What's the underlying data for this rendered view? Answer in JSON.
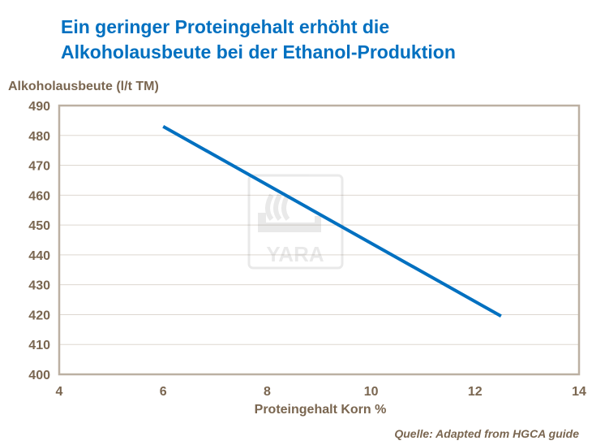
{
  "title_lines": [
    "Ein geringer Proteingehalt erhöht die",
    "Alkoholausbeute bei der Ethanol-Produktion"
  ],
  "watermark": "YARA",
  "source": "Quelle:  Adapted from HGCA guide",
  "chart_data": {
    "type": "line",
    "title": "Ein geringer Proteingehalt erhöht die Alkoholausbeute bei der Ethanol-Produktion",
    "xlabel": "Proteingehalt Korn %",
    "ylabel": "Alkoholausbeute (l/t TM)",
    "xlim": [
      4,
      14
    ],
    "ylim": [
      400,
      490
    ],
    "xticks": [
      4,
      6,
      8,
      10,
      12,
      14
    ],
    "yticks": [
      400,
      410,
      420,
      430,
      440,
      450,
      460,
      470,
      480,
      490
    ],
    "grid": "horizontal",
    "series": [
      {
        "x": [
          6,
          12.5
        ],
        "y": [
          483,
          419.5
        ],
        "color": "#0070c0"
      }
    ]
  }
}
